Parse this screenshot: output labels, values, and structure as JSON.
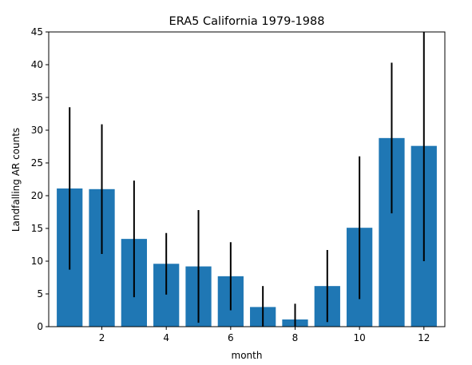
{
  "chart_data": {
    "type": "bar",
    "title": "ERA5 California 1979-1988",
    "xlabel": "month",
    "ylabel": "Landfalling AR counts",
    "x": [
      1,
      2,
      3,
      4,
      5,
      6,
      7,
      8,
      9,
      10,
      11,
      12
    ],
    "values": [
      21.1,
      21.0,
      13.4,
      9.6,
      9.2,
      7.7,
      3.0,
      1.1,
      6.2,
      15.1,
      28.8,
      27.6
    ],
    "errors": [
      12.4,
      9.9,
      8.9,
      4.7,
      8.6,
      5.2,
      3.2,
      2.4,
      5.5,
      10.9,
      11.5,
      17.6
    ],
    "ylim": [
      0,
      45
    ],
    "xlim": [
      0.35,
      12.65
    ],
    "yticks": [
      0,
      5,
      10,
      15,
      20,
      25,
      30,
      35,
      40,
      45
    ],
    "xticks": [
      2,
      4,
      6,
      8,
      10,
      12
    ],
    "bar_color": "#1f77b4",
    "error_color": "#000000",
    "grid": false,
    "legend": "none"
  }
}
